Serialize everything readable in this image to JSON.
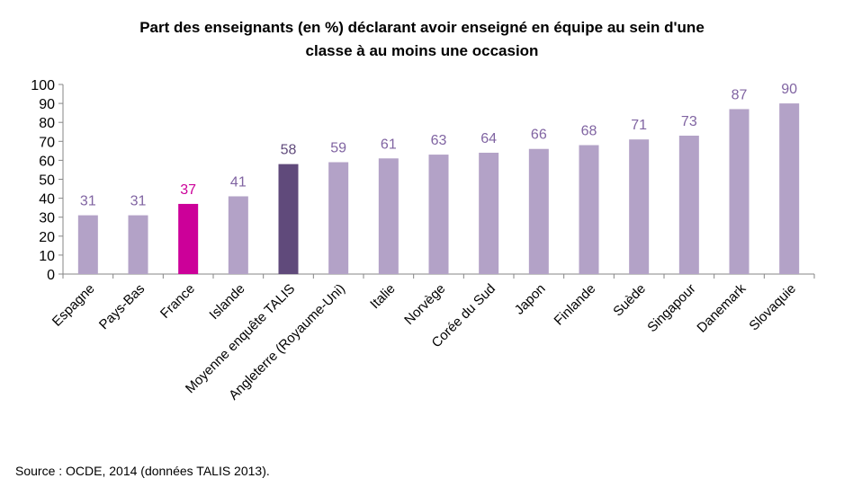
{
  "chart_data": {
    "type": "bar",
    "title_lines": [
      "Part des enseignants (en %) déclarant avoir enseigné en équipe au sein d'une",
      "classe à au moins une occasion"
    ],
    "categories": [
      "Espagne",
      "Pays-Bas",
      "France",
      "Islande",
      "Moyenne enquête TALIS",
      "Angleterre (Royaume-Uni)",
      "Italie",
      "Norvège",
      "Corée du Sud",
      "Japon",
      "Finlande",
      "Suède",
      "Singapour",
      "Danemark",
      "Slovaquie"
    ],
    "values": [
      31,
      31,
      37,
      41,
      58,
      59,
      61,
      63,
      64,
      66,
      68,
      71,
      73,
      87,
      90
    ],
    "bar_colors": [
      "#b3a2c7",
      "#b3a2c7",
      "#cc0099",
      "#b3a2c7",
      "#604a7b",
      "#b3a2c7",
      "#b3a2c7",
      "#b3a2c7",
      "#b3a2c7",
      "#b3a2c7",
      "#b3a2c7",
      "#b3a2c7",
      "#b3a2c7",
      "#b3a2c7",
      "#b3a2c7"
    ],
    "label_colors": [
      "#8064a2",
      "#8064a2",
      "#cc0099",
      "#8064a2",
      "#604a7b",
      "#8064a2",
      "#8064a2",
      "#8064a2",
      "#8064a2",
      "#8064a2",
      "#8064a2",
      "#8064a2",
      "#8064a2",
      "#8064a2",
      "#8064a2"
    ],
    "ylim": [
      0,
      100
    ],
    "yticks": [
      0,
      10,
      20,
      30,
      40,
      50,
      60,
      70,
      80,
      90,
      100
    ],
    "grid": false,
    "legend": "none",
    "xlabel": "",
    "ylabel": ""
  },
  "source": "Source : OCDE, 2014 (données TALIS 2013)."
}
